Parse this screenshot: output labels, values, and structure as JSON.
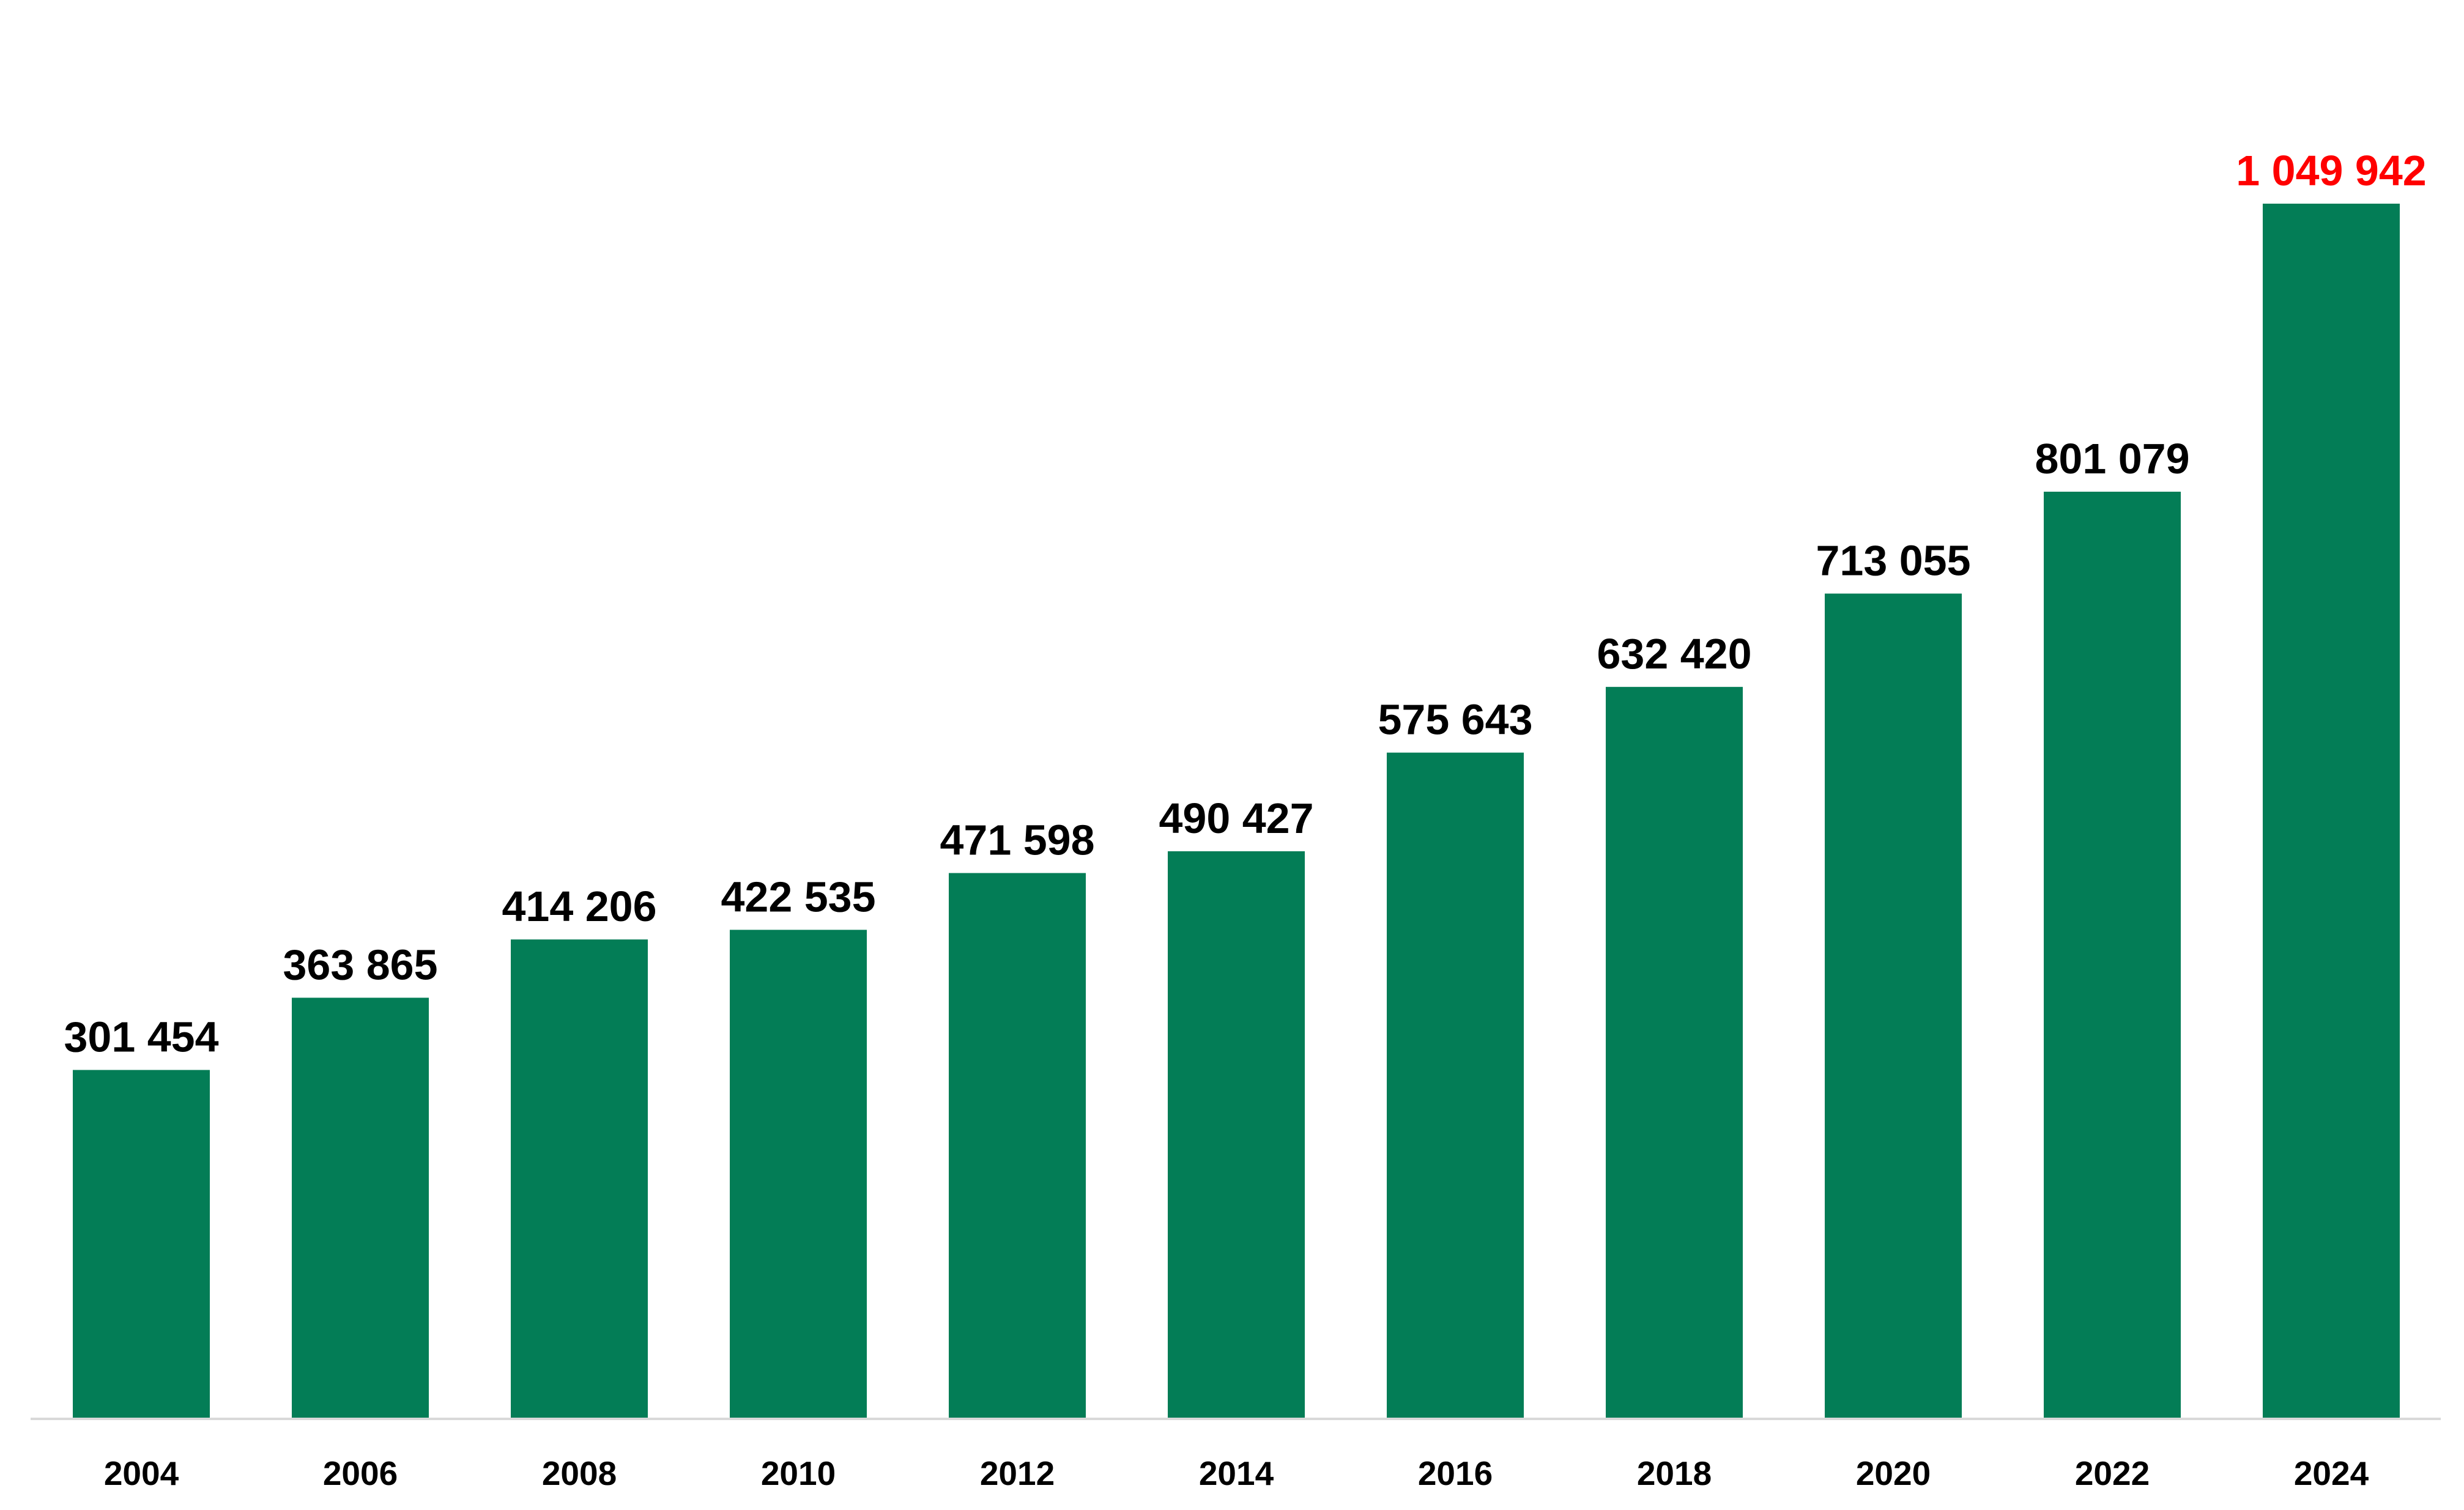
{
  "chart_data": {
    "type": "bar",
    "categories": [
      "2004",
      "2006",
      "2008",
      "2010",
      "2012",
      "2014",
      "2016",
      "2018",
      "2020",
      "2022",
      "2024"
    ],
    "values": [
      301454,
      363865,
      414206,
      422535,
      471598,
      490427,
      575643,
      632420,
      713055,
      801079,
      1049942
    ],
    "data_labels": [
      "301 454",
      "363 865",
      "414 206",
      "422 535",
      "471 598",
      "490 427",
      "575 643",
      "632 420",
      "713 055",
      "801 079",
      "1 049 942"
    ],
    "highlight_index": 10,
    "title": "",
    "xlabel": "",
    "ylabel": "",
    "ylim": [
      0,
      1200000
    ],
    "grid": false,
    "legend": "none",
    "colors": {
      "bar": "#037d56",
      "label": "#000000",
      "highlight_label": "#ff0000",
      "axis": "#d9d9d9"
    }
  }
}
